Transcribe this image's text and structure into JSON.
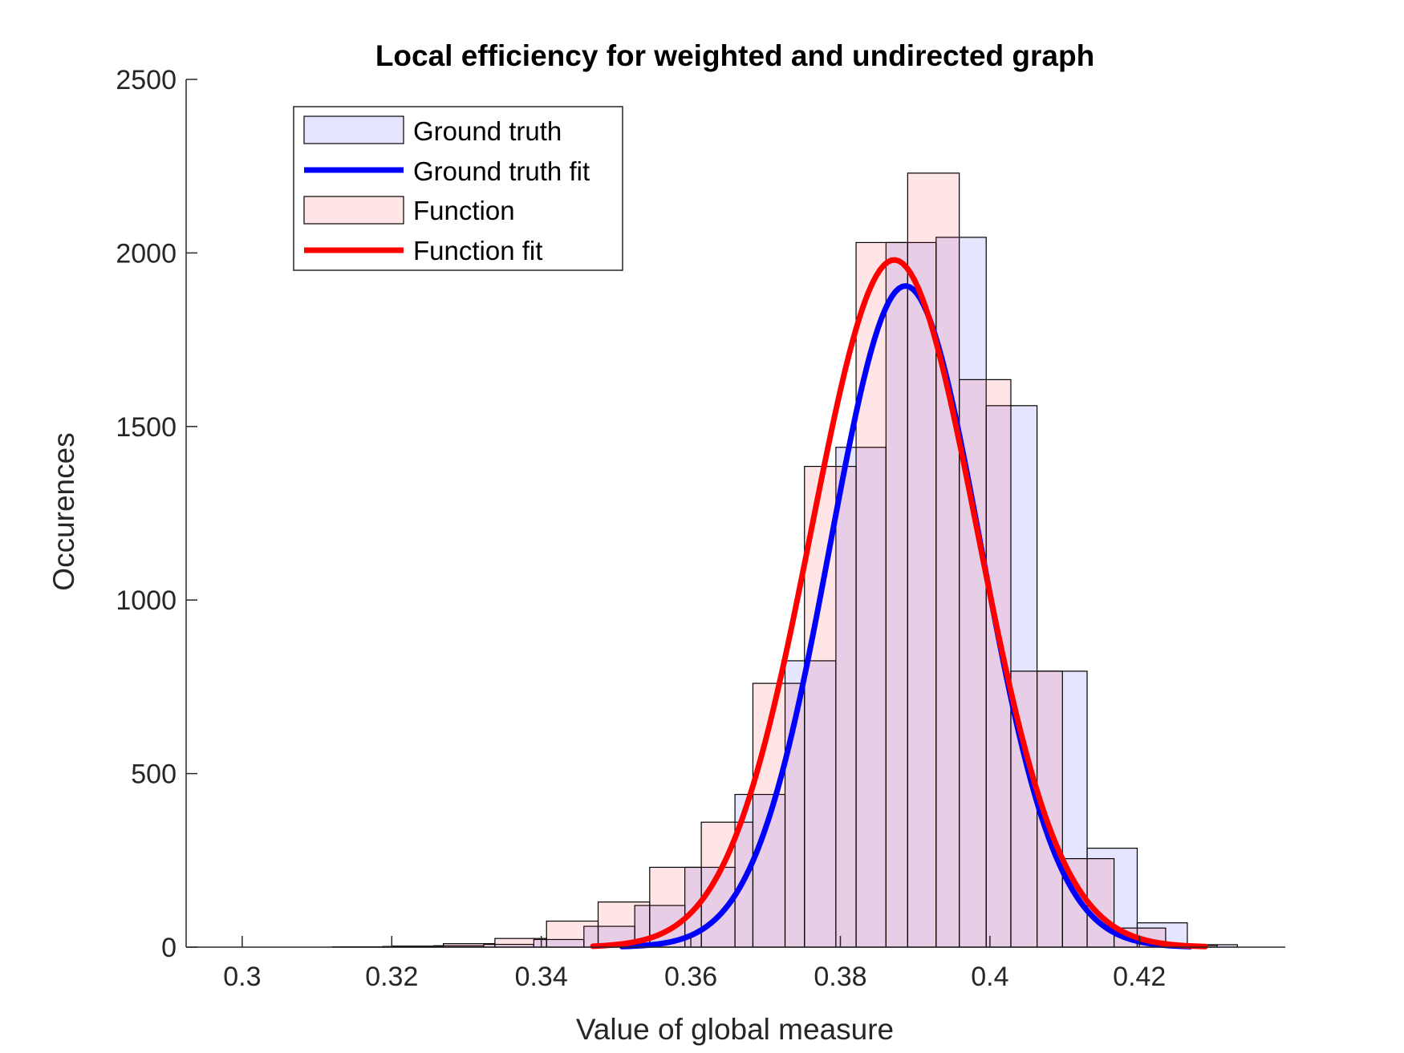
{
  "chart_data": {
    "type": "histogram",
    "title": "Local efficiency for weighted and undirected graph",
    "xlabel": "Value of global measure",
    "ylabel": "Occurences",
    "xlim": [
      0.2925,
      0.4395
    ],
    "ylim": [
      0,
      2500
    ],
    "xticks": [
      0.3,
      0.32,
      0.34,
      0.36,
      0.38,
      0.4,
      0.42
    ],
    "xtick_labels": [
      "0.3",
      "0.32",
      "0.34",
      "0.36",
      "0.38",
      "0.4",
      "0.42"
    ],
    "yticks": [
      0,
      500,
      1000,
      1500,
      2000,
      2500
    ],
    "ytick_labels": [
      "0",
      "500",
      "1000",
      "1500",
      "2000",
      "2500"
    ],
    "grid": false,
    "legend_position": "top-left",
    "series": [
      {
        "name": "Ground truth",
        "kind": "bars",
        "color": "#0000ff",
        "bins": [
          {
            "x0": 0.2987,
            "x1": 0.3054,
            "count": 0
          },
          {
            "x0": 0.3054,
            "x1": 0.3121,
            "count": 0
          },
          {
            "x0": 0.3121,
            "x1": 0.3188,
            "count": 1
          },
          {
            "x0": 0.3188,
            "x1": 0.3256,
            "count": 2
          },
          {
            "x0": 0.3256,
            "x1": 0.3323,
            "count": 4
          },
          {
            "x0": 0.3323,
            "x1": 0.339,
            "count": 8
          },
          {
            "x0": 0.339,
            "x1": 0.3457,
            "count": 22
          },
          {
            "x0": 0.3457,
            "x1": 0.3525,
            "count": 60
          },
          {
            "x0": 0.3525,
            "x1": 0.3592,
            "count": 120
          },
          {
            "x0": 0.3592,
            "x1": 0.3659,
            "count": 230
          },
          {
            "x0": 0.3659,
            "x1": 0.3726,
            "count": 440
          },
          {
            "x0": 0.3726,
            "x1": 0.3794,
            "count": 825
          },
          {
            "x0": 0.3794,
            "x1": 0.3861,
            "count": 1440
          },
          {
            "x0": 0.3861,
            "x1": 0.3928,
            "count": 2030
          },
          {
            "x0": 0.3928,
            "x1": 0.3995,
            "count": 2045
          },
          {
            "x0": 0.3995,
            "x1": 0.4063,
            "count": 1560
          },
          {
            "x0": 0.4063,
            "x1": 0.413,
            "count": 795
          },
          {
            "x0": 0.413,
            "x1": 0.4197,
            "count": 285
          },
          {
            "x0": 0.4197,
            "x1": 0.4264,
            "count": 70
          },
          {
            "x0": 0.4264,
            "x1": 0.4331,
            "count": 7
          }
        ]
      },
      {
        "name": "Ground truth fit",
        "kind": "fit",
        "color": "#0000ff",
        "mean": 0.3887,
        "sigma": 0.0101,
        "peak": 1905,
        "x_range": [
          0.3508,
          0.4268
        ]
      },
      {
        "name": "Function",
        "kind": "bars",
        "color": "#ff0000",
        "bins": [
          {
            "x0": 0.2924,
            "x1": 0.2993,
            "count": 0
          },
          {
            "x0": 0.2993,
            "x1": 0.3062,
            "count": 0
          },
          {
            "x0": 0.3062,
            "x1": 0.3131,
            "count": 0
          },
          {
            "x0": 0.3131,
            "x1": 0.32,
            "count": 1
          },
          {
            "x0": 0.32,
            "x1": 0.3269,
            "count": 3
          },
          {
            "x0": 0.3269,
            "x1": 0.3338,
            "count": 10
          },
          {
            "x0": 0.3338,
            "x1": 0.3407,
            "count": 25
          },
          {
            "x0": 0.3407,
            "x1": 0.3476,
            "count": 75
          },
          {
            "x0": 0.3476,
            "x1": 0.3545,
            "count": 130
          },
          {
            "x0": 0.3545,
            "x1": 0.3614,
            "count": 230
          },
          {
            "x0": 0.3614,
            "x1": 0.3683,
            "count": 360
          },
          {
            "x0": 0.3683,
            "x1": 0.3752,
            "count": 760
          },
          {
            "x0": 0.3752,
            "x1": 0.3821,
            "count": 1385
          },
          {
            "x0": 0.3821,
            "x1": 0.389,
            "count": 2030
          },
          {
            "x0": 0.389,
            "x1": 0.3959,
            "count": 2230
          },
          {
            "x0": 0.3959,
            "x1": 0.4028,
            "count": 1635
          },
          {
            "x0": 0.4028,
            "x1": 0.4097,
            "count": 795
          },
          {
            "x0": 0.4097,
            "x1": 0.4166,
            "count": 255
          },
          {
            "x0": 0.4166,
            "x1": 0.4235,
            "count": 55
          },
          {
            "x0": 0.4235,
            "x1": 0.4304,
            "count": 5
          }
        ]
      },
      {
        "name": "Function fit",
        "kind": "fit",
        "color": "#ff0000",
        "mean": 0.3872,
        "sigma": 0.0111,
        "peak": 1980,
        "x_range": [
          0.3469,
          0.4288
        ]
      }
    ]
  }
}
